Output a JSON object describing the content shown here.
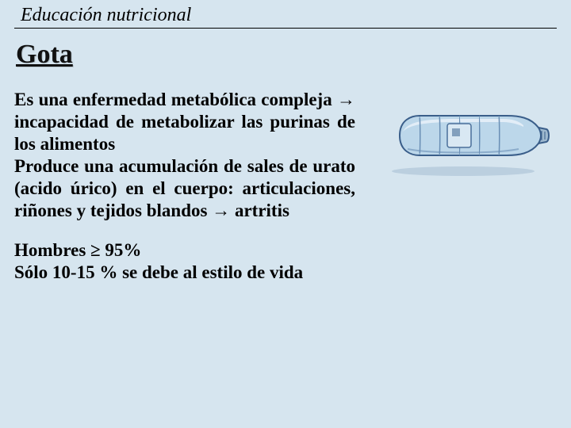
{
  "header": {
    "title": "Educación nutricional"
  },
  "title": "Gota",
  "body": {
    "para1": "Es una enfermedad metabólica compleja → incapacidad de metabolizar las purinas de los alimentos\nProduce una acumulación de sales de urato (acido úrico) en el cuerpo: articulaciones, riñones y tejidos blandos → artritis",
    "para2": "Hombres ≥ 95%\nSólo 10-15 % se debe al estilo de vida"
  },
  "image": {
    "name": "water-bottle-illustration",
    "colors": {
      "outline": "#3a5e8a",
      "body_fill": "#bcd7ea",
      "highlight": "#e6f0f8",
      "shadow": "#6a8fb5",
      "label_bg": "#d9e8f3",
      "label_stroke": "#4a6f99"
    }
  },
  "style": {
    "background_color": "#d6e5ef",
    "header_fontsize": 24,
    "title_fontsize": 34,
    "body_fontsize": 23,
    "font_family": "Times New Roman"
  }
}
